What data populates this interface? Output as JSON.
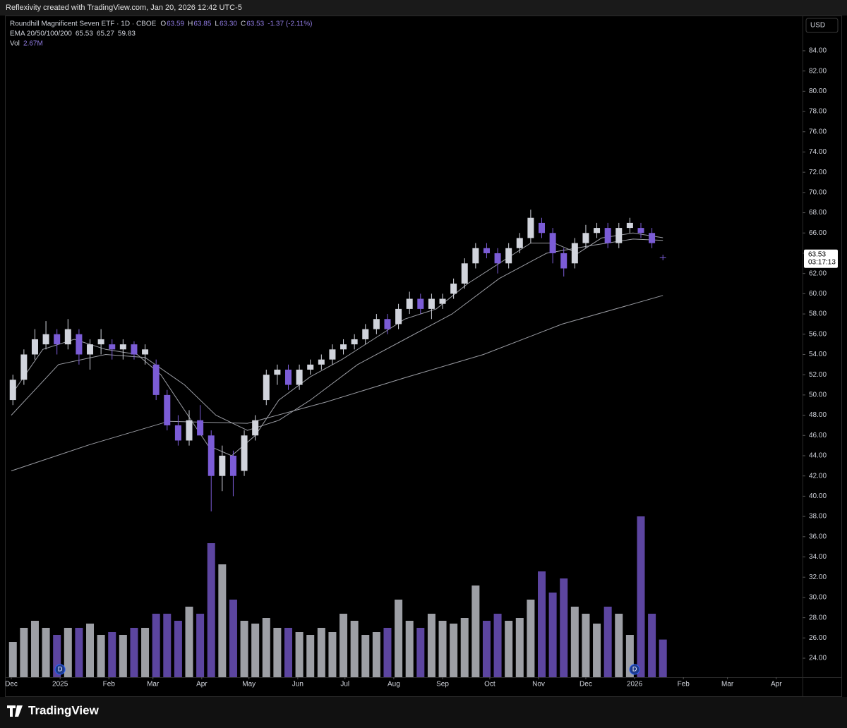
{
  "header": {
    "credit": "Reflexivity created with TradingView.com, Jan 20, 2026 12:42 UTC-5",
    "brand": "TradingView",
    "currency": "USD"
  },
  "chart_data": {
    "type": "candlestick",
    "title": "Roundhill Magnificent Seven ETF · 1D · CBOE",
    "quote": [
      {
        "key": "O",
        "value": "63.59"
      },
      {
        "key": "H",
        "value": "63.85"
      },
      {
        "key": "L",
        "value": "63.30"
      },
      {
        "key": "C",
        "value": "63.53"
      }
    ],
    "change": "-1.37 (-2.11%)",
    "volume_label": "Vol",
    "volume_readout": "2.67M",
    "countdown": "03:17:13",
    "up_color": "#d1d4dc",
    "down_color": "#7b5cd6",
    "x": [
      1,
      8,
      15,
      22,
      29,
      36,
      43,
      50,
      57,
      64,
      71,
      78,
      85,
      92,
      99,
      106,
      113,
      120,
      127,
      134,
      141,
      148,
      155,
      162,
      169,
      176,
      183,
      190,
      197,
      204,
      211,
      218,
      225,
      232,
      239,
      246,
      253,
      260,
      267,
      274,
      281,
      288,
      295,
      302,
      309,
      316,
      323,
      330,
      337,
      344,
      351,
      358,
      365,
      372,
      379,
      386,
      393,
      400,
      407,
      414
    ],
    "open": [
      49.5,
      51.5,
      54,
      55,
      56,
      55,
      56,
      54,
      55,
      55,
      54.5,
      55,
      54,
      53,
      50,
      47,
      45.5,
      47.5,
      46,
      42,
      44,
      42.5,
      46,
      49.5,
      52,
      52.5,
      51,
      52.5,
      53,
      53.5,
      54.5,
      55,
      55.5,
      56.5,
      57.5,
      57,
      58.5,
      59.5,
      58.5,
      59,
      60,
      61,
      63,
      64.5,
      64,
      63,
      64.5,
      65.5,
      67,
      66,
      64,
      63,
      65,
      66,
      66.5,
      65,
      66.5,
      66.5,
      66,
      63.59
    ],
    "high": [
      52,
      54.5,
      56.5,
      57.3,
      56.5,
      57.5,
      56.5,
      55.5,
      56.5,
      55.5,
      55.5,
      55.3,
      55,
      53.5,
      50.5,
      48,
      48.5,
      49,
      46.5,
      45,
      44.5,
      46.5,
      48,
      52.5,
      53,
      53,
      53,
      53.5,
      54,
      55,
      55.5,
      56,
      57,
      58,
      58,
      59,
      60.2,
      60,
      60,
      60,
      61.5,
      63.5,
      65,
      65,
      64.5,
      65,
      66,
      68.3,
      67.5,
      66.5,
      64.5,
      65.5,
      66.8,
      67,
      67,
      67,
      67.5,
      67,
      66.5,
      63.85
    ],
    "low": [
      49,
      51,
      53.5,
      54.5,
      54,
      54.5,
      53,
      52.5,
      54,
      53.5,
      53.5,
      53.5,
      53,
      49.5,
      46.5,
      45,
      45,
      46.5,
      38.5,
      40.5,
      40,
      42,
      45.5,
      49,
      51,
      50.5,
      50.5,
      52,
      52.5,
      53,
      54,
      54.5,
      55,
      56,
      56,
      56.5,
      58,
      58,
      57.5,
      58.5,
      59.5,
      60.5,
      62.5,
      63.5,
      62,
      62.5,
      64,
      65,
      65.5,
      63,
      61.7,
      62.5,
      64.5,
      65.5,
      64.5,
      64.5,
      66,
      65.5,
      64.5,
      63.3
    ],
    "close": [
      51.5,
      54,
      55.5,
      56,
      55,
      56.5,
      54,
      55,
      55.5,
      54.5,
      55,
      54,
      54.5,
      50,
      47,
      45.5,
      47.5,
      46,
      42,
      44,
      42,
      46,
      47.5,
      52,
      52.5,
      51,
      52.5,
      53,
      53.5,
      54.5,
      55,
      55.5,
      56.5,
      57.5,
      56.5,
      58.5,
      59.5,
      58.5,
      59.5,
      59.5,
      61,
      63,
      64.5,
      64,
      63,
      64.5,
      65.5,
      67.5,
      66,
      64,
      62.5,
      65,
      66,
      66.5,
      65,
      66.5,
      67,
      66,
      65,
      63.53
    ],
    "volume": [
      2.5,
      3.5,
      4.0,
      3.5,
      3.0,
      3.5,
      3.5,
      3.8,
      3.0,
      3.2,
      3.0,
      3.5,
      3.5,
      4.5,
      4.5,
      4.0,
      5.0,
      4.5,
      9.5,
      8.0,
      5.5,
      4.0,
      3.8,
      4.2,
      3.5,
      3.5,
      3.2,
      3.0,
      3.5,
      3.2,
      4.5,
      4.0,
      3.0,
      3.2,
      3.5,
      5.5,
      4.0,
      3.5,
      4.5,
      4.0,
      3.8,
      4.2,
      6.5,
      4.0,
      4.5,
      4.0,
      4.2,
      5.5,
      7.5,
      6.0,
      7.0,
      5.0,
      4.5,
      3.8,
      5.0,
      4.5,
      3.0,
      11.4,
      4.5,
      2.67
    ],
    "vlim": [
      0,
      15
    ],
    "ema": {
      "label": "EMA 20/50/100/200",
      "readout": [
        65.53,
        65.27,
        59.83
      ],
      "color": "#9a9ca3",
      "lines": [
        {
          "x": [
            0,
            20,
            40,
            60,
            80,
            95,
            110,
            125,
            140,
            155,
            170,
            190,
            210,
            230,
            250,
            270,
            290,
            310,
            330,
            345,
            360,
            375,
            395,
            414
          ],
          "values": [
            50,
            54.5,
            55.5,
            54.5,
            54,
            52,
            48.5,
            45,
            44,
            46,
            49.5,
            51.8,
            53.5,
            55.5,
            57.5,
            58.5,
            61,
            63,
            65,
            65,
            64,
            65.5,
            66,
            65.53
          ]
        },
        {
          "x": [
            0,
            30,
            60,
            85,
            110,
            130,
            150,
            170,
            190,
            220,
            250,
            280,
            310,
            340,
            370,
            395,
            414
          ],
          "values": [
            48,
            53,
            54,
            53.7,
            51,
            48,
            46.5,
            47.5,
            49.5,
            53,
            55.5,
            58,
            61.5,
            64,
            64.8,
            65.4,
            65.27
          ]
        },
        {
          "x": [
            0,
            50,
            100,
            150,
            200,
            250,
            300,
            350,
            414
          ],
          "values": [
            42.5,
            45.1,
            47.4,
            47.2,
            49.3,
            51.7,
            54,
            57,
            59.83
          ]
        }
      ]
    },
    "dividends": [
      {
        "x": 31,
        "label": "D"
      },
      {
        "x": 396,
        "label": "D"
      }
    ],
    "xlim": [
      -3.6,
      502.7
    ],
    "xticks": [
      {
        "value": 0,
        "label": "Dec"
      },
      {
        "value": 31,
        "label": "2025"
      },
      {
        "value": 62,
        "label": "Feb"
      },
      {
        "value": 90,
        "label": "Mar"
      },
      {
        "value": 121,
        "label": "Apr"
      },
      {
        "value": 151,
        "label": "May"
      },
      {
        "value": 182,
        "label": "Jun"
      },
      {
        "value": 212,
        "label": "Jul"
      },
      {
        "value": 243,
        "label": "Aug"
      },
      {
        "value": 274,
        "label": "Sep"
      },
      {
        "value": 304,
        "label": "Oct"
      },
      {
        "value": 335,
        "label": "Nov"
      },
      {
        "value": 365,
        "label": "Dec"
      },
      {
        "value": 396,
        "label": "2026"
      },
      {
        "value": 427,
        "label": "Feb"
      },
      {
        "value": 455,
        "label": "Mar"
      },
      {
        "value": 486,
        "label": "Apr"
      }
    ],
    "ylim": [
      22.12,
      87.48
    ],
    "yticks": [
      {
        "value": 24,
        "label": "24.00"
      },
      {
        "value": 26,
        "label": "26.00"
      },
      {
        "value": 28,
        "label": "28.00"
      },
      {
        "value": 30,
        "label": "30.00"
      },
      {
        "value": 32,
        "label": "32.00"
      },
      {
        "value": 34,
        "label": "34.00"
      },
      {
        "value": 36,
        "label": "36.00"
      },
      {
        "value": 38,
        "label": "38.00"
      },
      {
        "value": 40,
        "label": "40.00"
      },
      {
        "value": 42,
        "label": "42.00"
      },
      {
        "value": 44,
        "label": "44.00"
      },
      {
        "value": 46,
        "label": "46.00"
      },
      {
        "value": 48,
        "label": "48.00"
      },
      {
        "value": 50,
        "label": "50.00"
      },
      {
        "value": 52,
        "label": "52.00"
      },
      {
        "value": 54,
        "label": "54.00"
      },
      {
        "value": 56,
        "label": "56.00"
      },
      {
        "value": 58,
        "label": "58.00"
      },
      {
        "value": 60,
        "label": "60.00"
      },
      {
        "value": 62,
        "label": "62.00"
      },
      {
        "value": 64,
        "label": "64.00"
      },
      {
        "value": 66,
        "label": "66.00"
      },
      {
        "value": 68,
        "label": "68.00"
      },
      {
        "value": 70,
        "label": "70.00"
      },
      {
        "value": 72,
        "label": "72.00"
      },
      {
        "value": 74,
        "label": "74.00"
      },
      {
        "value": 76,
        "label": "76.00"
      },
      {
        "value": 78,
        "label": "78.00"
      },
      {
        "value": 80,
        "label": "80.00"
      },
      {
        "value": 82,
        "label": "82.00"
      },
      {
        "value": 84,
        "label": "84.00"
      }
    ],
    "grid": false
  }
}
